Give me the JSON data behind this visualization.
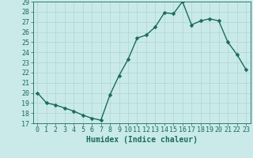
{
  "x": [
    0,
    1,
    2,
    3,
    4,
    5,
    6,
    7,
    8,
    9,
    10,
    11,
    12,
    13,
    14,
    15,
    16,
    17,
    18,
    19,
    20,
    21,
    22,
    23
  ],
  "y": [
    20,
    19,
    18.8,
    18.5,
    18.2,
    17.8,
    17.5,
    17.3,
    19.8,
    21.7,
    23.3,
    25.4,
    25.7,
    26.5,
    27.9,
    27.8,
    29.0,
    26.7,
    27.1,
    27.3,
    27.1,
    25.0,
    23.8,
    22.3
  ],
  "xlabel": "Humidex (Indice chaleur)",
  "ylim": [
    17,
    29
  ],
  "xlim": [
    -0.5,
    23.5
  ],
  "yticks": [
    17,
    18,
    19,
    20,
    21,
    22,
    23,
    24,
    25,
    26,
    27,
    28,
    29
  ],
  "xticks": [
    0,
    1,
    2,
    3,
    4,
    5,
    6,
    7,
    8,
    9,
    10,
    11,
    12,
    13,
    14,
    15,
    16,
    17,
    18,
    19,
    20,
    21,
    22,
    23
  ],
  "line_color": "#1a6b5a",
  "marker_color": "#1a6b5a",
  "bg_color": "#caeaea",
  "grid_color": "#aed4d4",
  "label_color": "#1a6b5a",
  "tick_color": "#1a6b5a",
  "xlabel_fontsize": 7,
  "tick_fontsize": 6,
  "marker_size": 2.5,
  "line_width": 1.0
}
